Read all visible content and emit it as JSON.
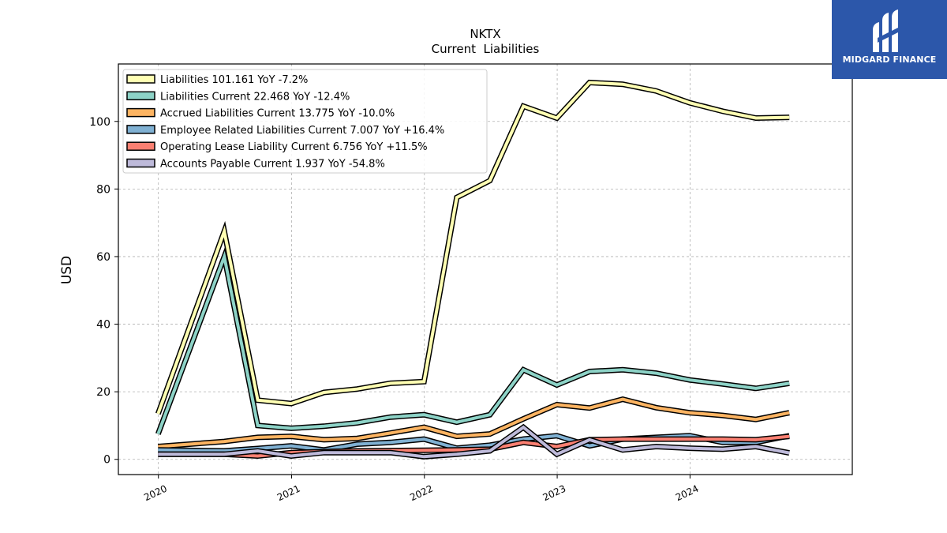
{
  "brand": {
    "name": "MIDGARD FINANCE",
    "logo_icon": "midgard-mark-icon",
    "color": "#2c57aa"
  },
  "chart_data": {
    "type": "line",
    "title": "NKTX",
    "subtitle": "Current  Liabilities",
    "ylabel": "USD",
    "xlabel": "",
    "ylim": [
      -4.5,
      117
    ],
    "yticks": [
      0,
      20,
      40,
      60,
      80,
      100
    ],
    "xticks": [
      "2020",
      "2021",
      "2022",
      "2023",
      "2024"
    ],
    "grid": true,
    "legend_position": "top-left",
    "x": [
      "2019-12-31",
      "2020-06-30",
      "2020-09-30",
      "2020-12-31",
      "2021-03-31",
      "2021-06-30",
      "2021-09-30",
      "2021-12-31",
      "2022-03-31",
      "2022-06-30",
      "2022-09-30",
      "2022-12-31",
      "2023-03-31",
      "2023-06-30",
      "2023-09-30",
      "2023-12-31",
      "2024-03-31",
      "2024-06-30",
      "2024-09-30"
    ],
    "series": [
      {
        "name": "Liabilities",
        "legend": "Liabilities  101.161 YoY -7.2%",
        "color": "#ffffb3",
        "values": [
          13.5,
          67.5,
          17.5,
          16.5,
          19.8,
          20.8,
          22.5,
          23.0,
          77.5,
          82.5,
          104.5,
          101.0,
          111.5,
          111.0,
          109.0,
          105.5,
          103.0,
          101.0,
          101.2
        ]
      },
      {
        "name": "Liabilities Current",
        "legend": "Liabilities Current  22.468 YoY -12.4%",
        "color": "#8dd3c7",
        "values": [
          7.5,
          60.0,
          10.0,
          9.2,
          9.8,
          10.8,
          12.5,
          13.2,
          11.0,
          13.2,
          26.5,
          22.0,
          26.0,
          26.5,
          25.5,
          23.5,
          22.3,
          21.0,
          22.5
        ]
      },
      {
        "name": "Accrued Liabilities Current",
        "legend": "Accrued Liabilities Current  13.775 YoY -10.0%",
        "color": "#fdb462",
        "values": [
          3.8,
          5.3,
          6.5,
          6.8,
          5.8,
          6.2,
          7.8,
          9.5,
          6.8,
          7.5,
          12.0,
          16.2,
          15.2,
          17.8,
          15.3,
          13.8,
          13.0,
          11.8,
          13.8
        ]
      },
      {
        "name": "Employee Related Liabilities Current",
        "legend": "Employee Related Liabilities Current  7.007 YoY +16.4%",
        "color": "#80b1d3",
        "values": [
          2.8,
          2.5,
          3.2,
          4.0,
          2.8,
          4.5,
          5.0,
          6.0,
          3.3,
          4.2,
          6.0,
          7.0,
          4.0,
          6.0,
          6.5,
          7.0,
          5.0,
          5.0,
          7.0
        ]
      },
      {
        "name": "Operating Lease Liability Current",
        "legend": "Operating Lease Liability Current  6.756 YoY +11.5%",
        "color": "#fb8072",
        "values": [
          1.5,
          1.5,
          1.0,
          2.0,
          2.3,
          2.5,
          2.6,
          2.7,
          2.8,
          3.0,
          5.0,
          3.8,
          5.8,
          6.0,
          6.0,
          6.0,
          6.0,
          5.8,
          6.8
        ]
      },
      {
        "name": "Accounts Payable Current",
        "legend": "Accounts Payable Current  1.937 YoY -54.8%",
        "color": "#bebada",
        "values": [
          1.5,
          1.5,
          2.5,
          1.0,
          2.0,
          2.0,
          2.0,
          0.8,
          1.5,
          2.5,
          9.5,
          1.5,
          5.8,
          2.8,
          3.8,
          3.3,
          3.0,
          3.8,
          1.9
        ]
      }
    ]
  }
}
